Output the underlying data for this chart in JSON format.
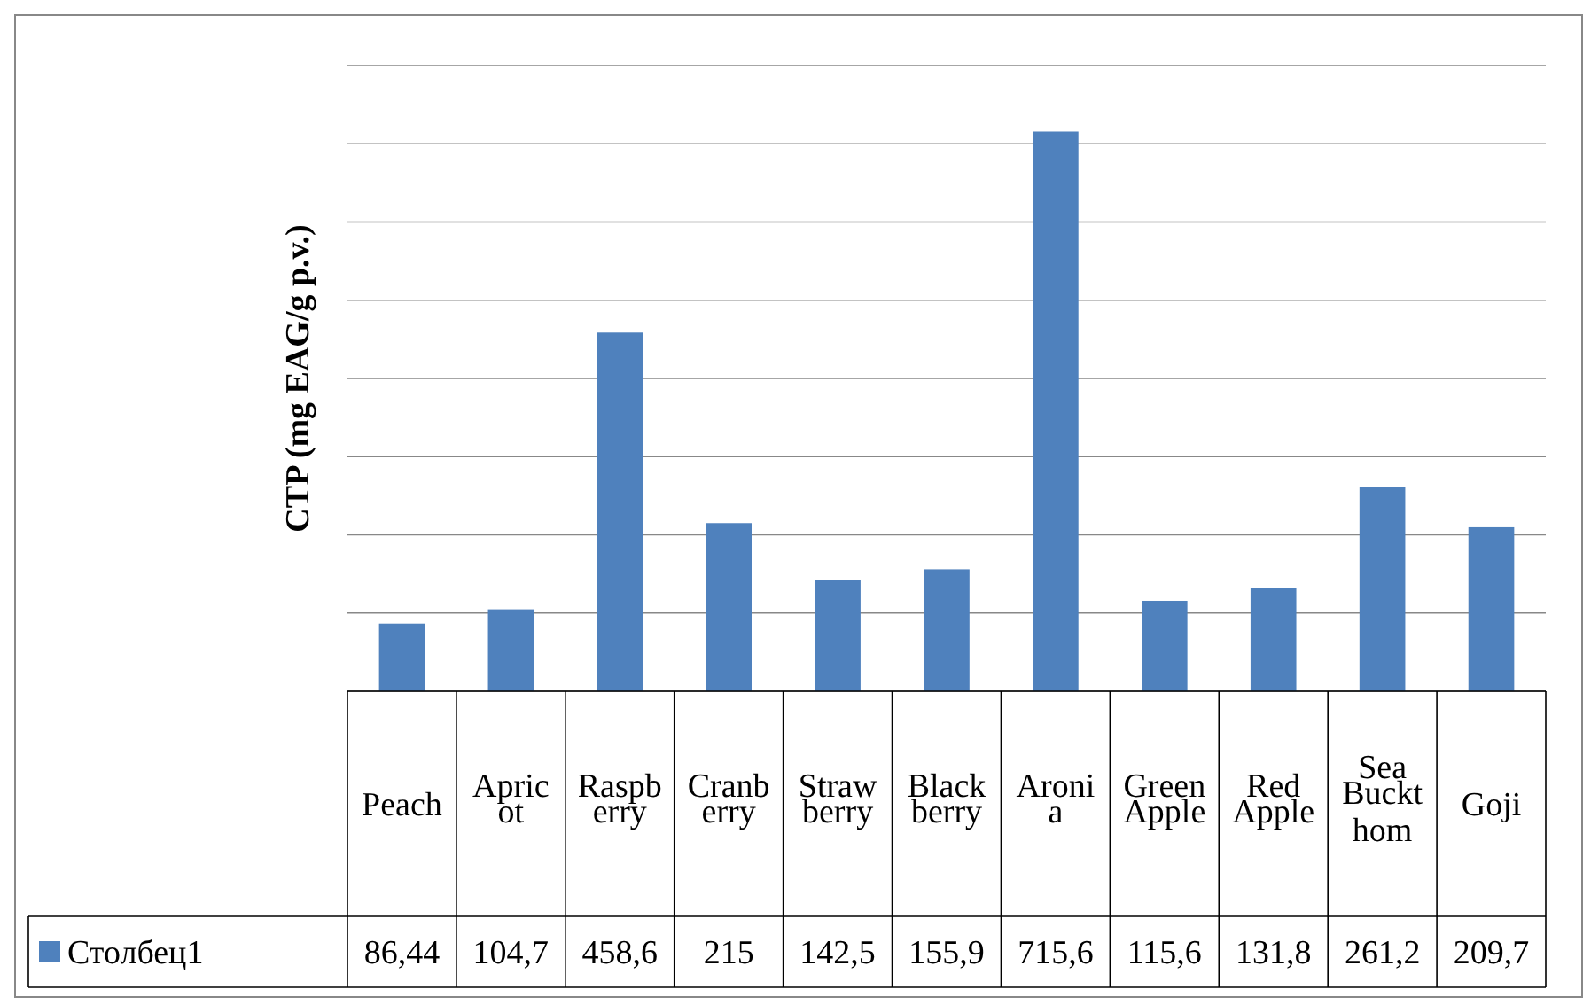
{
  "chart_data": {
    "type": "bar",
    "ylabel": "CTP (mg EAG/g p.v.)",
    "categories": [
      "Peach",
      "Apricot",
      "Raspberry",
      "Cranberry",
      "Strawberry",
      "Blackberry",
      "Aronia",
      "Green Apple",
      "Red Apple",
      "Sea Buckthom",
      "Goji"
    ],
    "series": [
      {
        "name": "Столбец1",
        "color": "#4f81bd",
        "values": [
          86.44,
          104.7,
          458.6,
          215,
          142.5,
          155.9,
          715.6,
          115.6,
          131.8,
          261.2,
          209.7
        ],
        "value_labels": [
          "86,44",
          "104,7",
          "458,6",
          "215",
          "142,5",
          "155,9",
          "715,6",
          "115,6",
          "131,8",
          "261,2",
          "209,7"
        ]
      }
    ],
    "ylim": [
      0,
      800
    ],
    "yticks": [
      {
        "value": 0,
        "label": null
      },
      {
        "value": 100,
        "label": null
      },
      {
        "value": 200,
        "label": null
      },
      {
        "value": 300,
        "label": null
      },
      {
        "value": 400,
        "label": null
      },
      {
        "value": 500,
        "label": null
      },
      {
        "value": 600,
        "label": null
      },
      {
        "value": 700,
        "label": null
      },
      {
        "value": 800,
        "label": null
      }
    ],
    "grid": "y",
    "legend": "bottom"
  }
}
